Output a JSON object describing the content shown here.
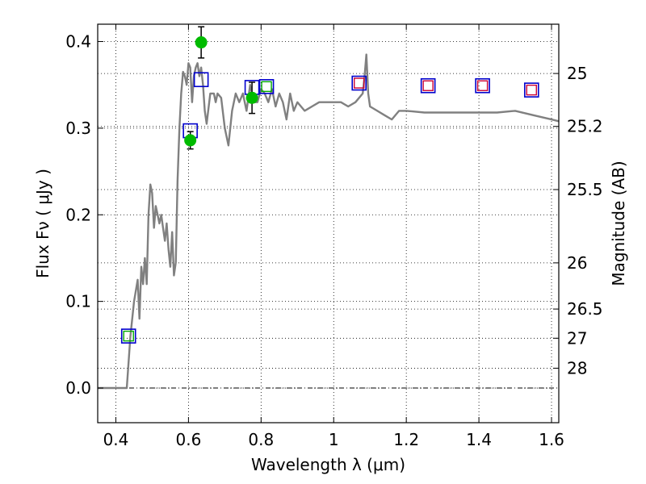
{
  "chart_data": {
    "type": "scatter",
    "xlabel": "Wavelength  λ (μm)",
    "ylabel": "Flux  Fν  ( μJy )",
    "ylabel_right": "Magnitude (AB)",
    "xlim": [
      0.35,
      1.62
    ],
    "ylim": [
      -0.04,
      0.42
    ],
    "grid": true,
    "x_ticks": [
      0.4,
      0.6,
      0.8,
      1.0,
      1.2,
      1.4,
      1.6
    ],
    "x_tick_labels": [
      "0.4",
      "0.6",
      "0.8",
      "1",
      "1.2",
      "1.4",
      "1.6"
    ],
    "y_ticks": [
      0.0,
      0.1,
      0.2,
      0.3,
      0.4
    ],
    "y_tick_labels": [
      "0.0",
      "0.1",
      "0.2",
      "0.3",
      "0.4"
    ],
    "right_ticks": [
      {
        "label": "25",
        "flux": 0.3631
      },
      {
        "label": "25.2",
        "flux": 0.302
      },
      {
        "label": "25.5",
        "flux": 0.2291
      },
      {
        "label": "26",
        "flux": 0.1445
      },
      {
        "label": "26.5",
        "flux": 0.0912
      },
      {
        "label": "27",
        "flux": 0.0575
      },
      {
        "label": "28",
        "flux": 0.0229
      }
    ],
    "zero_line": 0.0,
    "series": [
      {
        "kind": "line",
        "color": "#808080",
        "x": [
          0.35,
          0.43,
          0.44,
          0.45,
          0.46,
          0.465,
          0.47,
          0.475,
          0.48,
          0.485,
          0.49,
          0.495,
          0.5,
          0.505,
          0.51,
          0.515,
          0.52,
          0.525,
          0.53,
          0.535,
          0.54,
          0.545,
          0.55,
          0.555,
          0.56,
          0.565,
          0.57,
          0.575,
          0.58,
          0.585,
          0.59,
          0.595,
          0.6,
          0.605,
          0.61,
          0.615,
          0.62,
          0.625,
          0.63,
          0.635,
          0.64,
          0.645,
          0.65,
          0.66,
          0.67,
          0.675,
          0.68,
          0.69,
          0.7,
          0.71,
          0.72,
          0.73,
          0.74,
          0.75,
          0.76,
          0.77,
          0.78,
          0.79,
          0.8,
          0.81,
          0.82,
          0.83,
          0.84,
          0.85,
          0.86,
          0.87,
          0.88,
          0.89,
          0.9,
          0.92,
          0.94,
          0.96,
          0.98,
          1.0,
          1.02,
          1.04,
          1.06,
          1.08,
          1.085,
          1.09,
          1.095,
          1.1,
          1.12,
          1.14,
          1.16,
          1.18,
          1.2,
          1.25,
          1.3,
          1.35,
          1.4,
          1.45,
          1.5,
          1.55,
          1.6,
          1.62
        ],
        "y": [
          0.0,
          0.0,
          0.06,
          0.1,
          0.125,
          0.08,
          0.14,
          0.12,
          0.15,
          0.12,
          0.2,
          0.235,
          0.225,
          0.185,
          0.21,
          0.2,
          0.19,
          0.2,
          0.185,
          0.17,
          0.19,
          0.16,
          0.14,
          0.18,
          0.13,
          0.145,
          0.24,
          0.3,
          0.34,
          0.365,
          0.36,
          0.35,
          0.375,
          0.37,
          0.33,
          0.36,
          0.37,
          0.375,
          0.36,
          0.37,
          0.35,
          0.32,
          0.305,
          0.34,
          0.34,
          0.33,
          0.34,
          0.335,
          0.3,
          0.28,
          0.32,
          0.34,
          0.33,
          0.34,
          0.32,
          0.35,
          0.33,
          0.33,
          0.345,
          0.34,
          0.33,
          0.345,
          0.325,
          0.34,
          0.33,
          0.31,
          0.34,
          0.32,
          0.33,
          0.32,
          0.325,
          0.33,
          0.33,
          0.33,
          0.33,
          0.325,
          0.33,
          0.34,
          0.36,
          0.385,
          0.34,
          0.325,
          0.32,
          0.315,
          0.31,
          0.32,
          0.32,
          0.318,
          0.318,
          0.318,
          0.318,
          0.318,
          0.32,
          0.315,
          0.31,
          0.308
        ]
      },
      {
        "kind": "points",
        "marker": "open-square",
        "color": "#0000cc",
        "x": [
          0.435,
          0.605,
          0.635,
          0.775,
          0.815,
          1.07,
          1.26,
          1.41,
          1.545
        ],
        "y": [
          0.06,
          0.297,
          0.356,
          0.347,
          0.348,
          0.352,
          0.349,
          0.349,
          0.344
        ]
      },
      {
        "kind": "points",
        "marker": "inner-square",
        "color": "#00aa00",
        "x": [
          0.435,
          0.815
        ],
        "y": [
          0.06,
          0.348
        ]
      },
      {
        "kind": "points",
        "marker": "inner-square",
        "color": "#cc0033",
        "x": [
          1.07,
          1.26,
          1.41,
          1.545
        ],
        "y": [
          0.352,
          0.349,
          0.349,
          0.344
        ]
      },
      {
        "kind": "points",
        "marker": "filled-circle",
        "color": "#00bb00",
        "x": [
          0.605,
          0.635,
          0.775
        ],
        "y": [
          0.286,
          0.399,
          0.335
        ],
        "yerr": [
          0.01,
          0.018,
          0.018
        ]
      }
    ]
  }
}
